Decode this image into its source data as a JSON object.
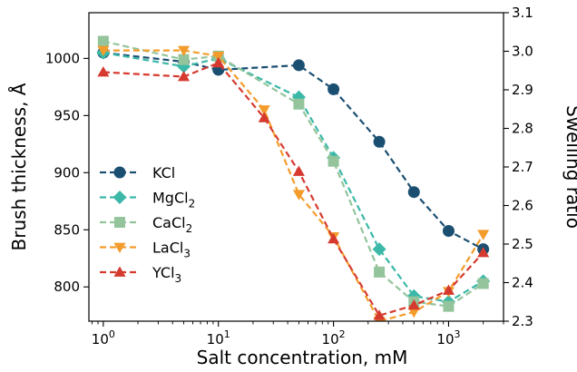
{
  "chart_data": {
    "type": "line",
    "xlabel": "Salt concentration, mM",
    "ylabel": "Brush thickness, Å",
    "y2label": "Swelling ratio",
    "x_scale": "log",
    "xlim": [
      0.75,
      3000
    ],
    "ylim": [
      770,
      1040
    ],
    "y2lim": [
      2.3,
      3.1
    ],
    "x_ticks": [
      1,
      10,
      100,
      1000
    ],
    "x_tick_labels": [
      {
        "base": "10",
        "exp": "0"
      },
      {
        "base": "10",
        "exp": "1"
      },
      {
        "base": "10",
        "exp": "2"
      },
      {
        "base": "10",
        "exp": "3"
      }
    ],
    "y_ticks": [
      800,
      850,
      900,
      950,
      1000
    ],
    "y2_ticks": [
      "2.3",
      "2.4",
      "2.5",
      "2.6",
      "2.7",
      "2.8",
      "2.9",
      "3.0",
      "3.1"
    ],
    "grid": false,
    "legend_position": "lower-left",
    "series": [
      {
        "name": "KCl",
        "marker": "circle",
        "color": "#1b4f72",
        "x": [
          1,
          5,
          10,
          50,
          100,
          250,
          500,
          1000,
          2000
        ],
        "y": [
          1005,
          997,
          990,
          994,
          973,
          927,
          883,
          849,
          833
        ]
      },
      {
        "name": "MgCl",
        "sub": "2",
        "marker": "diamond",
        "color": "#3bb8a8",
        "x": [
          1,
          5,
          10,
          50,
          100,
          250,
          500,
          1000,
          2000
        ],
        "y": [
          1005,
          993,
          1000,
          966,
          913,
          833,
          792,
          787,
          805
        ]
      },
      {
        "name": "CaCl",
        "sub": "2",
        "marker": "square",
        "color": "#93c49b",
        "x": [
          1,
          5,
          10,
          50,
          100,
          250,
          500,
          1000,
          2000
        ],
        "y": [
          1015,
          999,
          1002,
          960,
          910,
          813,
          787,
          783,
          803
        ]
      },
      {
        "name": "LaCl",
        "sub": "3",
        "marker": "triangle-down",
        "color": "#f39c2b",
        "x": [
          1,
          5,
          10,
          25,
          50,
          100,
          250,
          500,
          1000,
          2000
        ],
        "y": [
          1007,
          1007,
          1002,
          955,
          881,
          844,
          770,
          778,
          796,
          846
        ]
      },
      {
        "name": "YCl",
        "sub": "3",
        "marker": "triangle-up",
        "color": "#d63a2f",
        "x": [
          1,
          5,
          10,
          25,
          50,
          100,
          250,
          500,
          1000,
          2000
        ],
        "y": [
          988,
          984,
          996,
          948,
          901,
          842,
          775,
          784,
          797,
          830
        ]
      }
    ]
  }
}
